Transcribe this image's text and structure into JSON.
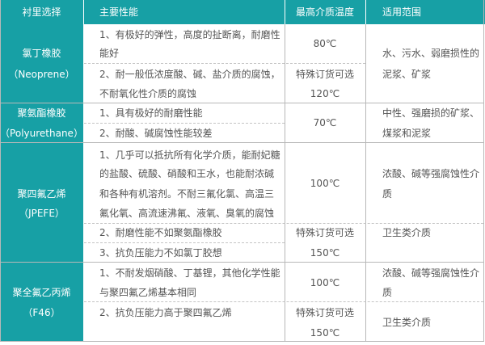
{
  "header": {
    "col1": "衬里选择",
    "col2": "主要性能",
    "col3": "最高介质温度",
    "col4": "适用范围"
  },
  "colors": {
    "accent": "#17a0a5",
    "header_text": "#ffffff",
    "body_text": "#555555"
  },
  "rows": [
    {
      "lining": [
        "氯丁橡胶",
        "（Neoprene）"
      ],
      "props": [
        "1、有极好的弹性，高度的扯断离，耐磨性",
        "能好",
        "2、耐一般低浓度酸、碱、盐介质的腐蚀，",
        "不耐氧化性介质的腐蚀"
      ],
      "temp": [
        "80℃",
        "特殊订货可选",
        "120℃"
      ],
      "scope": [
        "水、污水、弱磨损性的",
        "泥浆、矿浆"
      ]
    },
    {
      "lining": [
        "聚氨酯橡胶",
        "（Polyurethane）"
      ],
      "props": [
        "1、具有极好的耐磨性能",
        "2、耐酸、碱腐蚀性能较差"
      ],
      "temp": [
        "70℃"
      ],
      "scope": [
        "中性、强磨损的矿浆、",
        "煤浆和泥浆"
      ]
    },
    {
      "lining": [
        "聚四氟乙烯",
        "（JPEFE）"
      ],
      "props": [
        "1、几乎可以抵抗所有化学介质，能耐妃糖",
        "的盐酸、硫酸、硝酸和王水，也能耐浓碱",
        "和各种有机溶剂。不耐三氟化氯、高温三",
        "氟化氧、高流速沸氟、液氧、臭氧的腐蚀",
        "2、耐磨性能不如聚氨酯橡胶",
        "3、抗负压能力不如氯丁胶想"
      ],
      "temp": [
        "100℃",
        "特殊订货可选",
        "150℃"
      ],
      "scope": [
        "浓酸、碱等强腐蚀性介",
        "质",
        "卫生类介质"
      ]
    },
    {
      "lining": [
        "聚全氟乙丙烯",
        "（F46）"
      ],
      "props": [
        "1、不耐发烟硝酸、丁基锂，其他化学性能",
        "与聚四氟乙烯基本相同",
        "2、抗负压能力高于聚四氟乙烯"
      ],
      "temp": [
        "100℃",
        "特殊订货可选",
        "150℃"
      ],
      "scope": [
        "浓酸、碱等强腐蚀性介",
        "质",
        "卫生类介质"
      ]
    }
  ]
}
